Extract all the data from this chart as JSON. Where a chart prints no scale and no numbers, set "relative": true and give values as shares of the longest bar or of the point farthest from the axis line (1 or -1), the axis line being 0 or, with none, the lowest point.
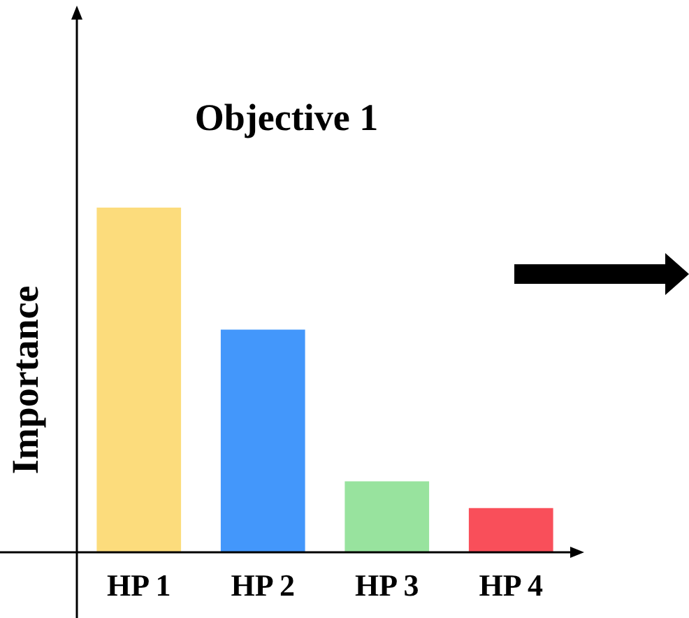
{
  "chart_data": {
    "type": "bar",
    "title": "Objective 1",
    "ylabel": "Importance",
    "relative": true,
    "categories": [
      "HP 1",
      "HP 2",
      "HP 3",
      "HP 4"
    ],
    "values": [
      1,
      0.646,
      0.206,
      0.128
    ],
    "colors": [
      "#fcdc7c",
      "#4397fb",
      "#98e39e",
      "#f94f5a"
    ],
    "grid": false,
    "legend": false
  }
}
